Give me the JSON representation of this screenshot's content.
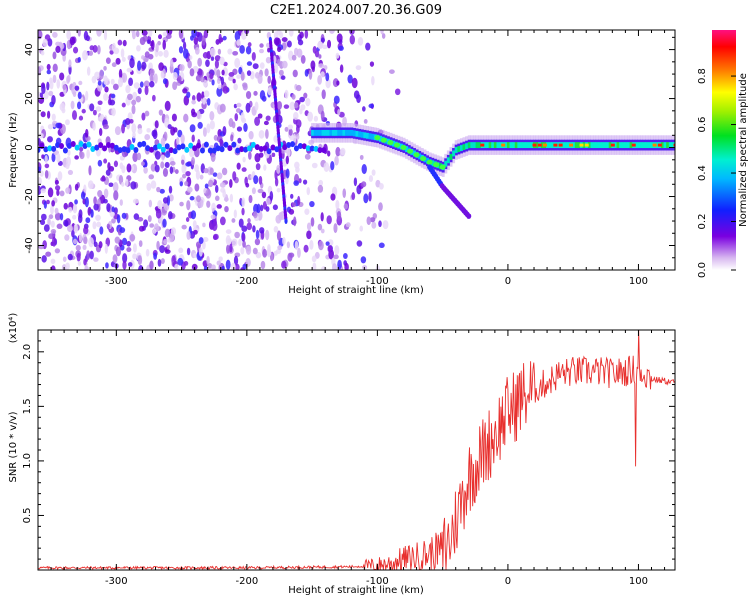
{
  "figure": {
    "title": "C2E1.2024.007.20.36.G09"
  },
  "colorbar": {
    "label": "Normalized spectral amplitude",
    "ticks": [
      "0.0",
      "0.2",
      "0.4",
      "0.6",
      "0.8"
    ]
  },
  "chart_data": [
    {
      "type": "heatmap",
      "title": "",
      "xlabel": "Height of straight line (km)",
      "ylabel": "Frequency (Hz)",
      "xlim": [
        -360,
        128
      ],
      "ylim": [
        -50,
        48
      ],
      "xticks": [
        -300,
        -200,
        -100,
        0,
        100
      ],
      "yticks": [
        -40,
        -20,
        0,
        20,
        40
      ],
      "colorscale": "normalized spectral amplitude 0-1 (purple→blue→cyan→green→yellow→red→magenta)",
      "features": {
        "noise_region_x": [
          -360,
          -100
        ],
        "main_track": {
          "x": [
            -150,
            -120,
            -100,
            -80,
            -60,
            -50,
            -40,
            -30,
            -20,
            0,
            50,
            100,
            128
          ],
          "y": [
            6,
            6,
            4,
            0,
            -6,
            -8,
            -1,
            1,
            1,
            1,
            1,
            1,
            1
          ]
        },
        "branch_track": {
          "x": [
            -60,
            -50,
            -40,
            -30
          ],
          "y": [
            -8,
            -16,
            -22,
            -28
          ]
        },
        "diagonal_streak": {
          "x": [
            -182,
            -170
          ],
          "y": [
            44,
            -30
          ]
        }
      }
    },
    {
      "type": "line",
      "title": "",
      "xlabel": "Height of straight line (km)",
      "ylabel": "SNR (10 * v/v)",
      "y_multiplier": "(x10⁴)",
      "xlim": [
        -360,
        128
      ],
      "ylim": [
        0,
        2.2
      ],
      "xticks": [
        -300,
        -200,
        -100,
        0,
        100
      ],
      "yticks": [
        0.5,
        1.0,
        1.5,
        2.0
      ],
      "ytick_labels": [
        "0.5",
        "1.0",
        "1.5",
        "2.0"
      ],
      "series": [
        {
          "color": "#e8302e",
          "x": [
            -360,
            -200,
            -120,
            -100,
            -90,
            -80,
            -70,
            -60,
            -50,
            -45,
            -40,
            -35,
            -30,
            -25,
            -20,
            -15,
            -10,
            -5,
            0,
            5,
            10,
            20,
            30,
            40,
            50,
            60,
            70,
            80,
            90,
            100,
            110,
            128
          ],
          "values": [
            0.02,
            0.02,
            0.03,
            0.04,
            0.06,
            0.1,
            0.12,
            0.15,
            0.2,
            0.25,
            0.45,
            0.65,
            0.85,
            0.95,
            1.05,
            1.15,
            1.25,
            1.35,
            1.45,
            1.5,
            1.58,
            1.65,
            1.72,
            1.8,
            1.82,
            1.82,
            1.82,
            1.8,
            1.82,
            1.85,
            1.75,
            1.72
          ]
        }
      ]
    }
  ]
}
